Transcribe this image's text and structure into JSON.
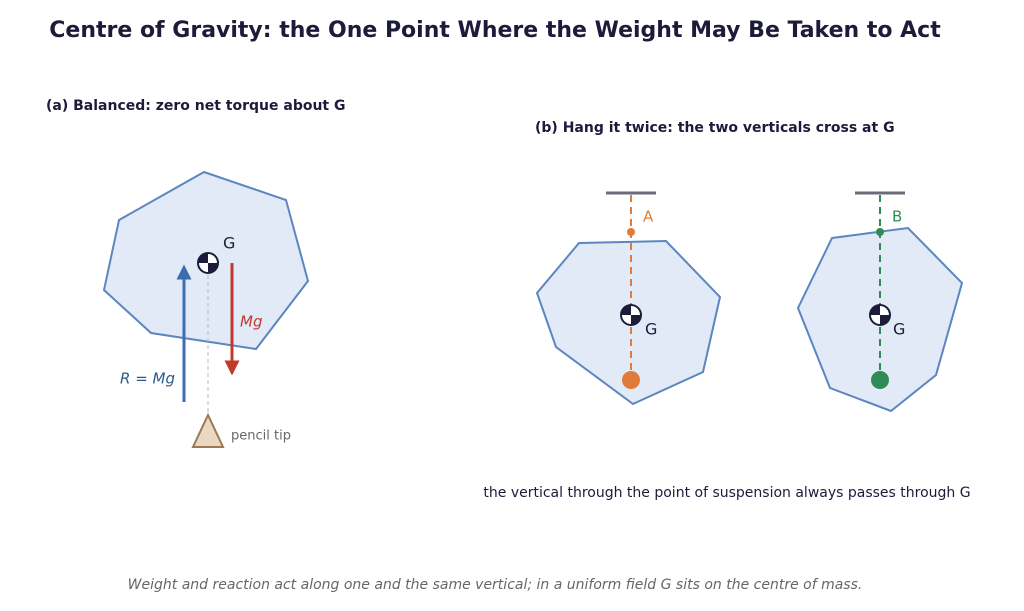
{
  "header": {
    "title": "Centre of Gravity: the One Point Where the Weight May Be Taken to Act"
  },
  "panel_a": {
    "title": "(a) Balanced: zero net torque about G",
    "g_label": "G",
    "weight_label": "Mg",
    "reaction_label": "R = Mg",
    "support_label": "pencil tip"
  },
  "panel_b": {
    "title": "(b) Hang it twice: the two verticals cross at G",
    "left": {
      "point_label": "A",
      "g_label": "G"
    },
    "right": {
      "point_label": "B",
      "g_label": "G"
    },
    "caption": "the vertical through the point of suspension always passes through G"
  },
  "footer": {
    "note": "Weight and reaction act along one and the same vertical; in a uniform field G sits on the centre of mass."
  }
}
